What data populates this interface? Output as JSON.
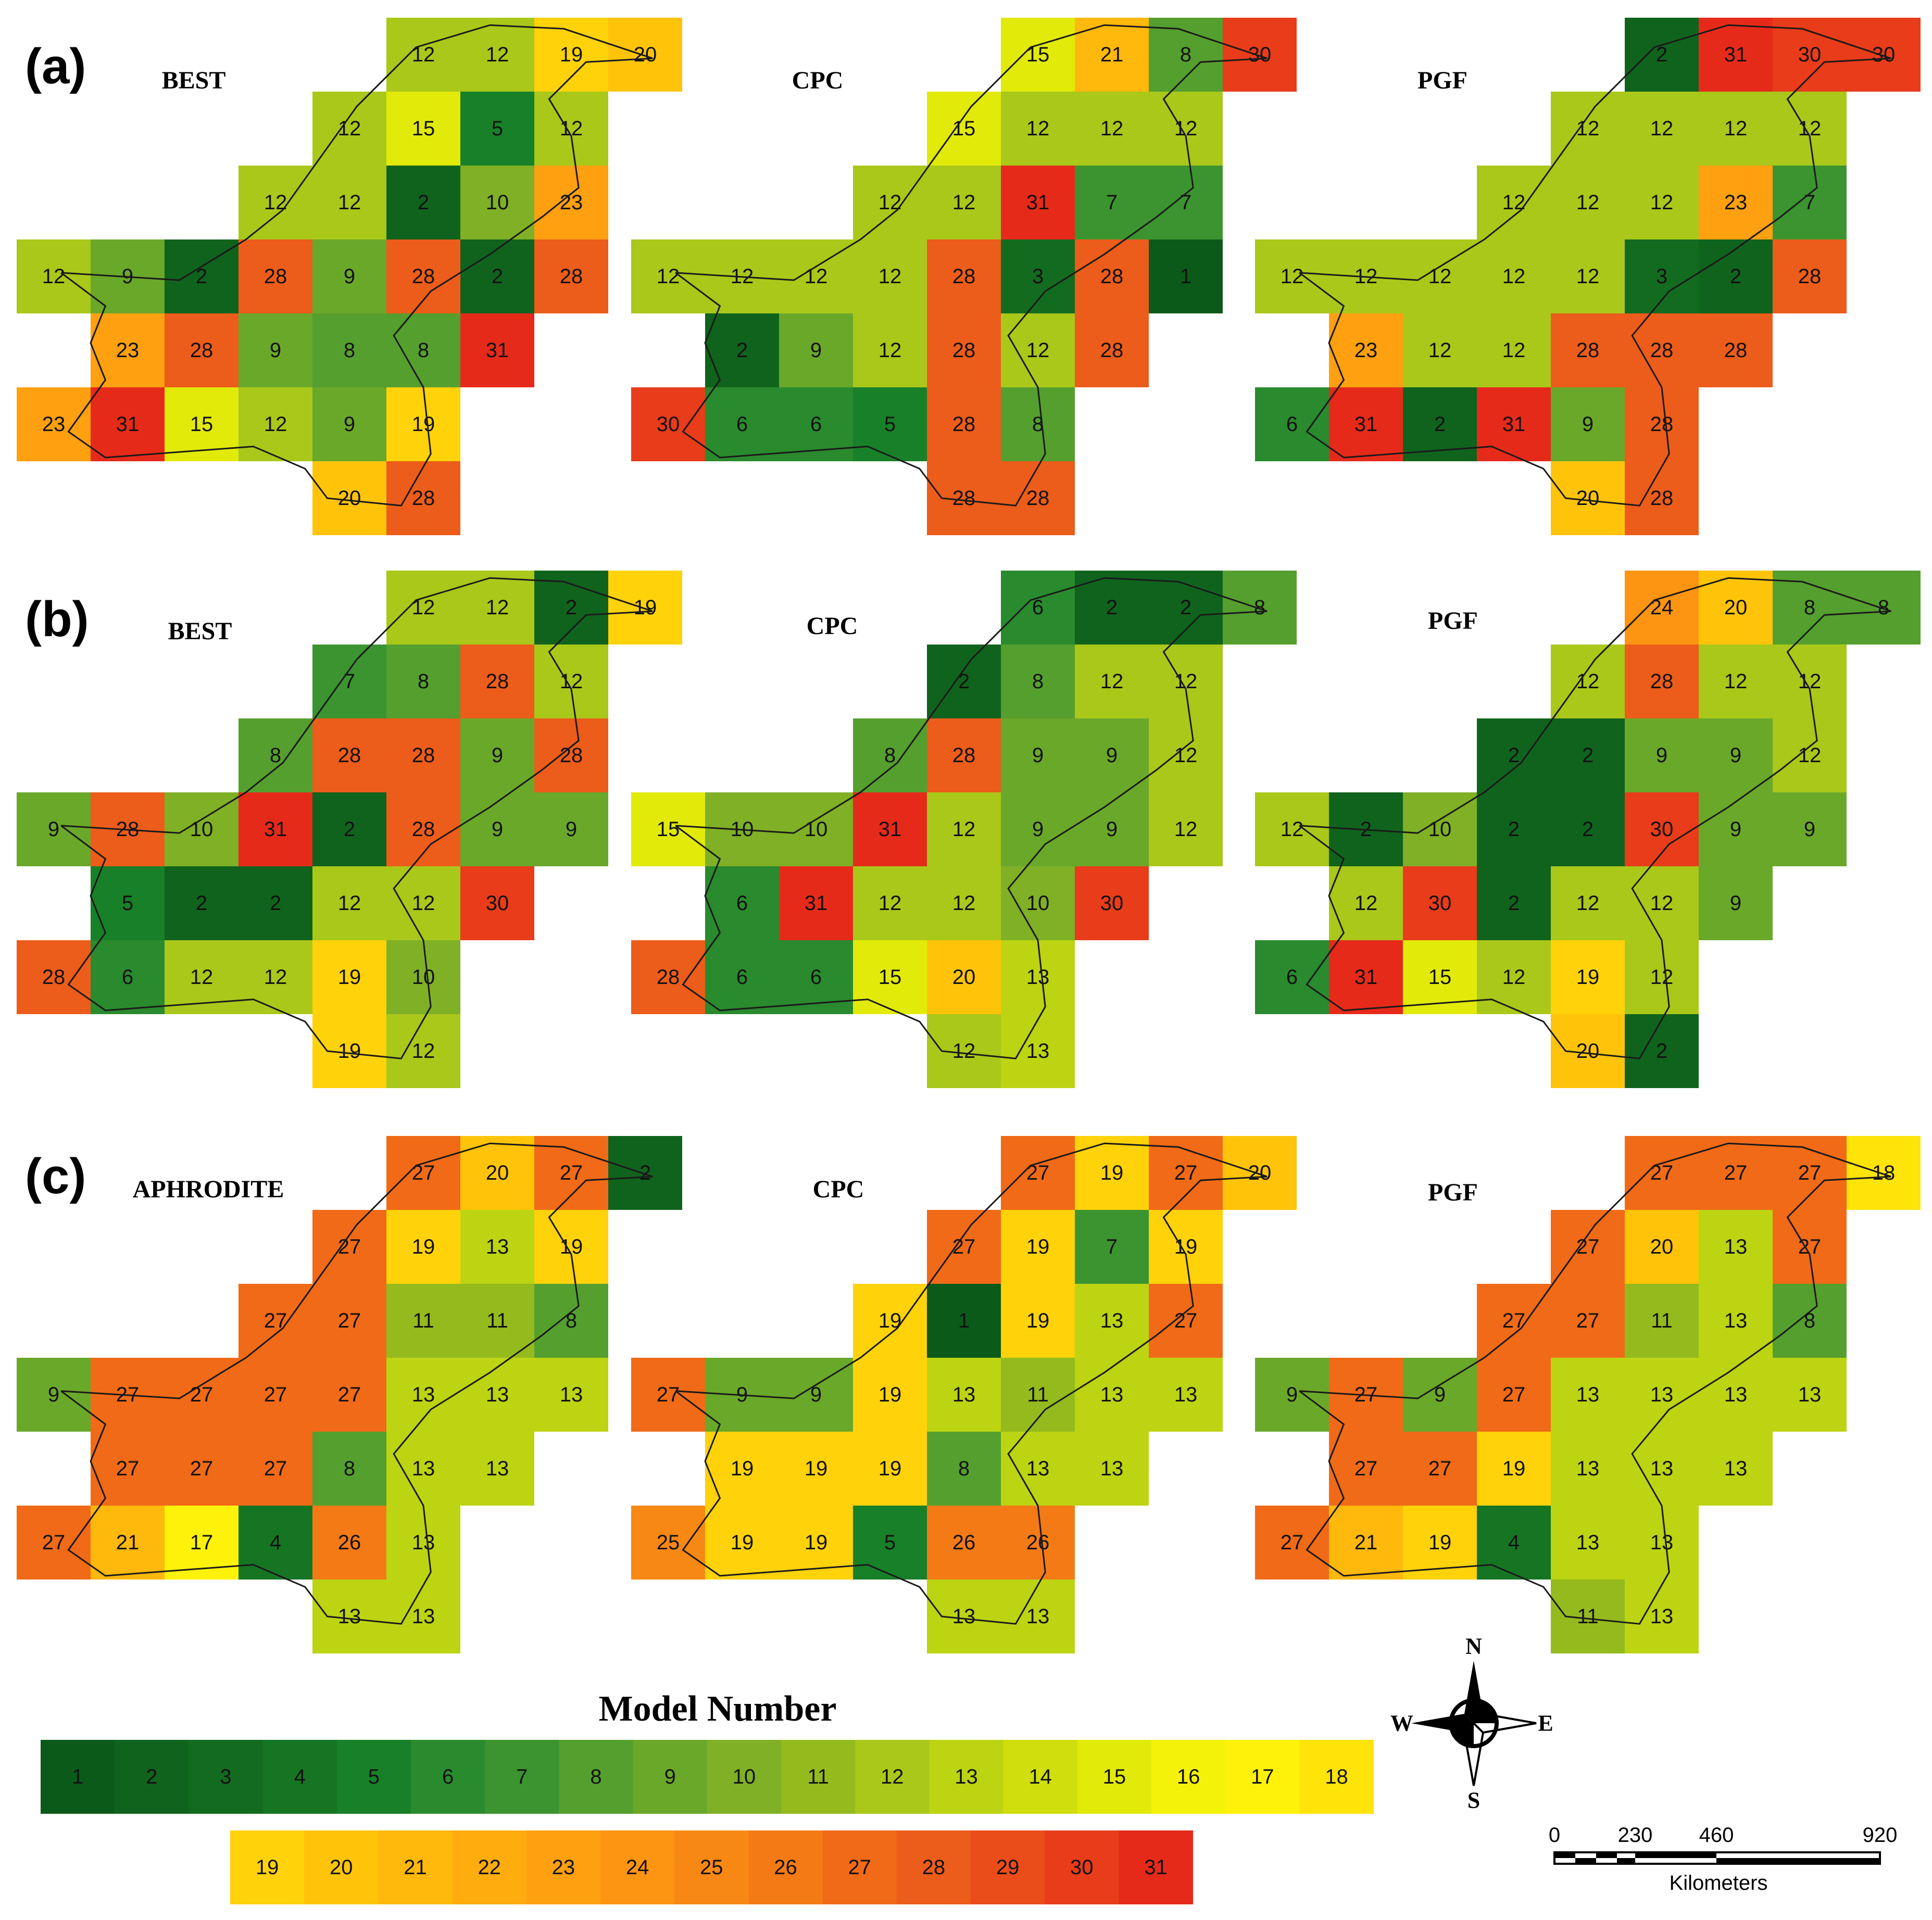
{
  "legend": {
    "title": "Model Number",
    "colors": {
      "1": "#0b5a1a",
      "2": "#10631d",
      "3": "#136b20",
      "4": "#157523",
      "5": "#188028",
      "6": "#2a8a2e",
      "7": "#3c9430",
      "8": "#559f2e",
      "9": "#6aa82a",
      "10": "#7fb026",
      "11": "#94ba1e",
      "12": "#a9c81a",
      "13": "#bcd412",
      "14": "#cfde0c",
      "15": "#e2ea0a",
      "16": "#f4f209",
      "17": "#fff20a",
      "18": "#ffe40a",
      "19": "#ffd20a",
      "20": "#ffc40a",
      "21": "#ffb80c",
      "22": "#ffac0e",
      "23": "#ffa010",
      "24": "#fd9412",
      "25": "#f88814",
      "26": "#f47a16",
      "27": "#f06a18",
      "28": "#ec5c1a",
      "29": "#ea4c1a",
      "30": "#e83c1a",
      "31": "#e62a1a"
    }
  },
  "compass": {
    "n": "N",
    "s": "S",
    "e": "E",
    "w": "W"
  },
  "scale_bar": {
    "labels": [
      "0",
      "230",
      "460",
      "920"
    ],
    "unit": "Kilometers"
  },
  "panels": [
    {
      "letter": "(a)",
      "maps": [
        {
          "title": "BEST",
          "grid": [
            [
              null,
              null,
              null,
              null,
              null,
              12,
              12,
              19,
              20
            ],
            [
              null,
              null,
              null,
              null,
              12,
              15,
              5,
              12,
              null
            ],
            [
              null,
              null,
              null,
              12,
              12,
              2,
              10,
              23,
              null
            ],
            [
              12,
              9,
              2,
              28,
              9,
              28,
              2,
              28,
              null
            ],
            [
              null,
              23,
              28,
              9,
              8,
              8,
              31,
              null,
              null
            ],
            [
              23,
              31,
              15,
              12,
              9,
              19,
              null,
              null,
              null
            ],
            [
              null,
              null,
              null,
              null,
              20,
              28,
              null,
              null,
              null
            ]
          ]
        },
        {
          "title": "CPC",
          "grid": [
            [
              null,
              null,
              null,
              null,
              null,
              15,
              21,
              8,
              30
            ],
            [
              null,
              null,
              null,
              null,
              15,
              12,
              12,
              12,
              null
            ],
            [
              null,
              null,
              null,
              12,
              12,
              31,
              7,
              7,
              null
            ],
            [
              12,
              12,
              12,
              12,
              28,
              3,
              28,
              1,
              null
            ],
            [
              null,
              2,
              9,
              12,
              28,
              12,
              28,
              null,
              null
            ],
            [
              30,
              6,
              6,
              5,
              28,
              8,
              null,
              null,
              null
            ],
            [
              null,
              null,
              null,
              null,
              28,
              28,
              null,
              null,
              null
            ]
          ]
        },
        {
          "title": "PGF",
          "grid": [
            [
              null,
              null,
              null,
              null,
              null,
              2,
              31,
              30,
              30
            ],
            [
              null,
              null,
              null,
              null,
              12,
              12,
              12,
              12,
              null
            ],
            [
              null,
              null,
              null,
              12,
              12,
              12,
              23,
              7,
              null
            ],
            [
              12,
              12,
              12,
              12,
              12,
              3,
              2,
              28,
              null
            ],
            [
              null,
              23,
              12,
              12,
              28,
              28,
              28,
              null,
              null
            ],
            [
              6,
              31,
              2,
              31,
              9,
              28,
              null,
              null,
              null
            ],
            [
              null,
              null,
              null,
              null,
              20,
              28,
              null,
              null,
              null
            ]
          ]
        }
      ]
    },
    {
      "letter": "(b)",
      "maps": [
        {
          "title": "BEST",
          "grid": [
            [
              null,
              null,
              null,
              null,
              null,
              12,
              12,
              2,
              19
            ],
            [
              null,
              null,
              null,
              null,
              7,
              8,
              28,
              12,
              null
            ],
            [
              null,
              null,
              null,
              8,
              28,
              28,
              9,
              28,
              null
            ],
            [
              9,
              28,
              10,
              31,
              2,
              28,
              9,
              9,
              null
            ],
            [
              null,
              5,
              2,
              2,
              12,
              12,
              30,
              null,
              null
            ],
            [
              28,
              6,
              12,
              12,
              19,
              10,
              null,
              null,
              null
            ],
            [
              null,
              null,
              null,
              null,
              19,
              12,
              null,
              null,
              null
            ]
          ]
        },
        {
          "title": "CPC",
          "grid": [
            [
              null,
              null,
              null,
              null,
              null,
              6,
              2,
              2,
              8
            ],
            [
              null,
              null,
              null,
              null,
              2,
              8,
              12,
              12,
              null
            ],
            [
              null,
              null,
              null,
              8,
              28,
              9,
              9,
              12,
              null
            ],
            [
              15,
              10,
              10,
              31,
              12,
              9,
              9,
              12,
              null
            ],
            [
              null,
              6,
              31,
              12,
              12,
              10,
              30,
              null,
              null
            ],
            [
              28,
              6,
              6,
              15,
              20,
              13,
              null,
              null,
              null
            ],
            [
              null,
              null,
              null,
              null,
              12,
              13,
              null,
              null,
              null
            ]
          ]
        },
        {
          "title": "PGF",
          "grid": [
            [
              null,
              null,
              null,
              null,
              null,
              24,
              20,
              8,
              8
            ],
            [
              null,
              null,
              null,
              null,
              12,
              28,
              12,
              12,
              null
            ],
            [
              null,
              null,
              null,
              2,
              2,
              9,
              9,
              12,
              null
            ],
            [
              12,
              2,
              10,
              2,
              2,
              30,
              9,
              9,
              null
            ],
            [
              null,
              12,
              30,
              2,
              12,
              12,
              9,
              null,
              null
            ],
            [
              6,
              31,
              15,
              12,
              19,
              12,
              null,
              null,
              null
            ],
            [
              null,
              null,
              null,
              null,
              20,
              2,
              null,
              null,
              null
            ]
          ]
        }
      ]
    },
    {
      "letter": "(c)",
      "maps": [
        {
          "title": "APHRODITE",
          "grid": [
            [
              null,
              null,
              null,
              null,
              null,
              27,
              20,
              27,
              2
            ],
            [
              null,
              null,
              null,
              null,
              27,
              19,
              13,
              19,
              null
            ],
            [
              null,
              null,
              null,
              27,
              27,
              11,
              11,
              8,
              null
            ],
            [
              9,
              27,
              27,
              27,
              27,
              13,
              13,
              13,
              null
            ],
            [
              null,
              27,
              27,
              27,
              8,
              13,
              13,
              null,
              null
            ],
            [
              27,
              21,
              17,
              4,
              26,
              13,
              null,
              null,
              null
            ],
            [
              null,
              null,
              null,
              null,
              13,
              13,
              null,
              null,
              null
            ]
          ]
        },
        {
          "title": "CPC",
          "grid": [
            [
              null,
              null,
              null,
              null,
              null,
              27,
              19,
              27,
              20
            ],
            [
              null,
              null,
              null,
              null,
              27,
              19,
              7,
              19,
              null
            ],
            [
              null,
              null,
              null,
              19,
              1,
              19,
              13,
              27,
              null
            ],
            [
              27,
              9,
              9,
              19,
              13,
              11,
              13,
              13,
              null
            ],
            [
              null,
              19,
              19,
              19,
              8,
              13,
              13,
              null,
              null
            ],
            [
              25,
              19,
              19,
              5,
              26,
              26,
              null,
              null,
              null
            ],
            [
              null,
              null,
              null,
              null,
              13,
              13,
              null,
              null,
              null
            ]
          ]
        },
        {
          "title": "PGF",
          "grid": [
            [
              null,
              null,
              null,
              null,
              null,
              27,
              27,
              27,
              18
            ],
            [
              null,
              null,
              null,
              null,
              27,
              20,
              13,
              27,
              null
            ],
            [
              null,
              null,
              null,
              27,
              27,
              11,
              13,
              8,
              null
            ],
            [
              9,
              27,
              9,
              27,
              13,
              13,
              13,
              13,
              null
            ],
            [
              null,
              27,
              27,
              19,
              13,
              13,
              13,
              null,
              null
            ],
            [
              27,
              21,
              19,
              4,
              13,
              13,
              null,
              null,
              null
            ],
            [
              null,
              null,
              null,
              null,
              11,
              13,
              null,
              null,
              null
            ]
          ]
        }
      ]
    }
  ]
}
